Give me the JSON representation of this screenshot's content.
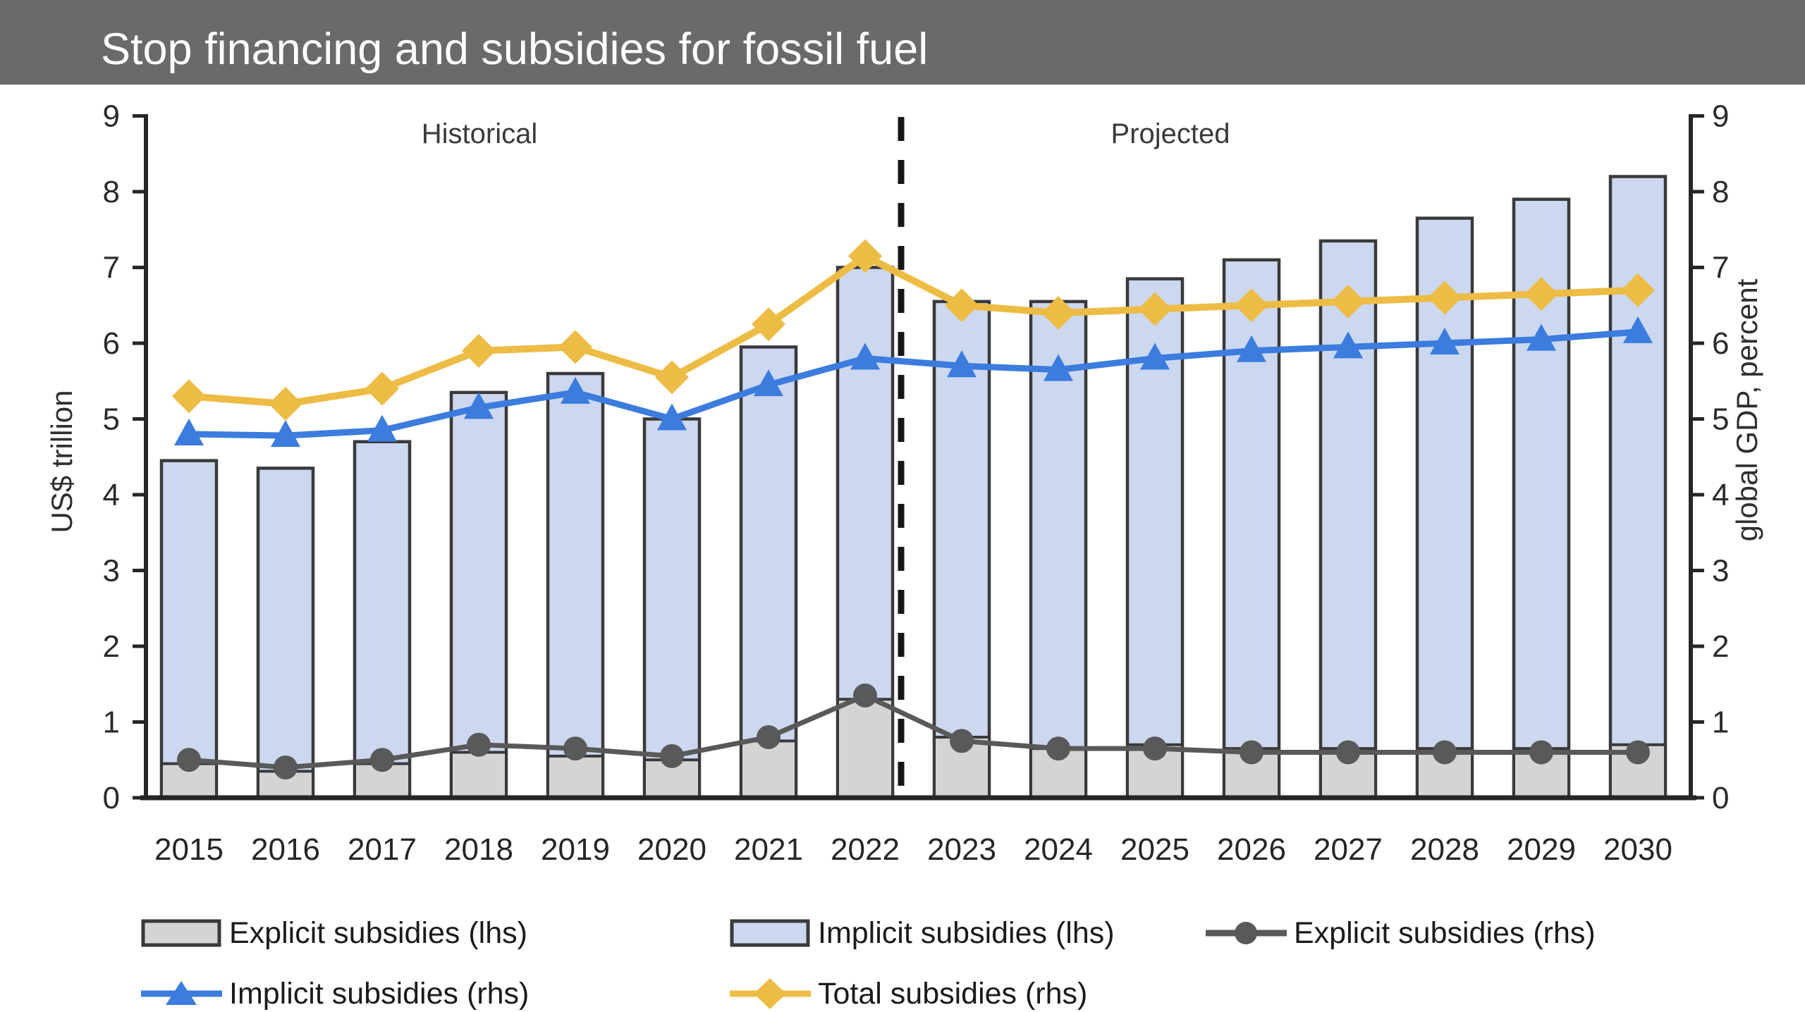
{
  "header": {
    "title": "Stop financing and subsidies for fossil fuel"
  },
  "palette": {
    "header_bg": "#6a6a6a",
    "header_text": "#ffffff",
    "background": "#ffffff",
    "bar_border": "#3a3a3a",
    "axis": "#262626",
    "tick_text": "#2b2b2b",
    "divider": "#161616",
    "explicit_bar": "#d4d4d4",
    "implicit_bar": "#ccd8ef",
    "explicit_line": "#595959",
    "implicit_line": "#3b7cde",
    "total_line": "#edbc45"
  },
  "chart_data": {
    "type": "combo-stacked-bar-line",
    "categories": [
      "2015",
      "2016",
      "2017",
      "2018",
      "2019",
      "2020",
      "2021",
      "2022",
      "2023",
      "2024",
      "2025",
      "2026",
      "2027",
      "2028",
      "2029",
      "2030"
    ],
    "left_axis": {
      "label": "US$ trillion",
      "min": 0,
      "max": 9,
      "tick_step": 1
    },
    "right_axis": {
      "label": "global GDP, percent",
      "min": 0,
      "max": 9,
      "tick_step": 1
    },
    "region_labels": [
      "Historical",
      "Projected"
    ],
    "divider": {
      "between": [
        "2022",
        "2023"
      ],
      "style": "dashed"
    },
    "grid": "off",
    "bar_series": [
      {
        "name": "Explicit subsidies (lhs)",
        "axis": "lhs",
        "stack": "subsidies",
        "color": "#d4d4d4",
        "values": [
          0.45,
          0.35,
          0.45,
          0.6,
          0.55,
          0.5,
          0.75,
          1.3,
          0.8,
          0.65,
          0.7,
          0.65,
          0.65,
          0.65,
          0.65,
          0.7
        ]
      },
      {
        "name": "Implicit subsidies (lhs)",
        "axis": "lhs",
        "stack": "subsidies",
        "color": "#ccd8ef",
        "values": [
          4.0,
          4.0,
          4.25,
          4.75,
          5.05,
          4.5,
          5.2,
          5.7,
          5.75,
          5.9,
          6.15,
          6.45,
          6.7,
          7.0,
          7.25,
          7.5
        ]
      }
    ],
    "stack_totals": [
      4.45,
      4.35,
      4.7,
      5.35,
      5.6,
      5.0,
      5.95,
      7.0,
      6.55,
      6.55,
      6.85,
      7.1,
      7.35,
      7.65,
      7.9,
      8.2
    ],
    "line_series": [
      {
        "name": "Explicit subsidies (rhs)",
        "axis": "rhs",
        "marker": "circle",
        "color": "#595959",
        "values": [
          0.5,
          0.4,
          0.5,
          0.7,
          0.65,
          0.55,
          0.8,
          1.35,
          0.75,
          0.65,
          0.65,
          0.6,
          0.6,
          0.6,
          0.6,
          0.6
        ]
      },
      {
        "name": "Implicit subsidies (rhs)",
        "axis": "rhs",
        "marker": "triangle",
        "color": "#3b7cde",
        "values": [
          4.8,
          4.78,
          4.85,
          5.15,
          5.35,
          5.0,
          5.45,
          5.8,
          5.7,
          5.65,
          5.8,
          5.9,
          5.95,
          6.0,
          6.05,
          6.15
        ]
      },
      {
        "name": "Total subsidies (rhs)",
        "axis": "rhs",
        "marker": "diamond",
        "color": "#edbc45",
        "values": [
          5.3,
          5.2,
          5.4,
          5.9,
          5.95,
          5.55,
          6.25,
          7.15,
          6.5,
          6.4,
          6.45,
          6.5,
          6.55,
          6.6,
          6.65,
          6.7
        ]
      }
    ],
    "legend": {
      "rows": [
        [
          {
            "label": "Explicit subsidies (lhs)",
            "swatch": "rect",
            "color": "#d4d4d4"
          },
          {
            "label": "Implicit subsidies (lhs)",
            "swatch": "rect",
            "color": "#ccd8ef"
          },
          {
            "label": "Explicit subsidies (rhs)",
            "swatch": "line-circle",
            "color": "#595959"
          }
        ],
        [
          {
            "label": "Implicit subsidies (rhs)",
            "swatch": "line-triangle",
            "color": "#3b7cde"
          },
          {
            "label": "Total subsidies (rhs)",
            "swatch": "line-diamond",
            "color": "#edbc45"
          }
        ]
      ]
    }
  }
}
